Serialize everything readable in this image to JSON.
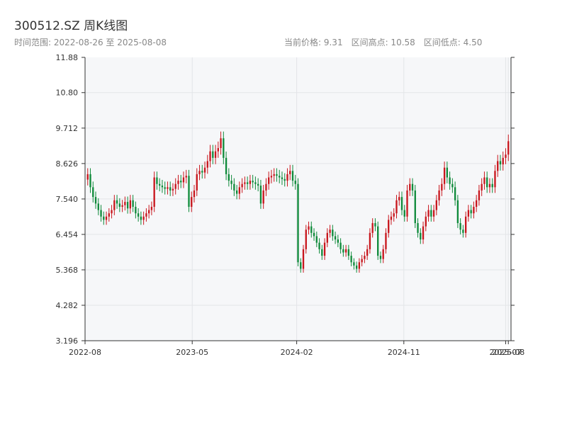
{
  "header": {
    "title": "300512.SZ 周K线图",
    "range_label": "时间范围: 2022-08-26 至 2025-08-08",
    "price_label": "当前价格: 9.31",
    "high_label": "区间高点: 10.58",
    "low_label": "区间低点: 4.50"
  },
  "colors": {
    "up": "#c8161d",
    "down": "#0f8a3a",
    "plot_bg": "#f6f7f9",
    "grid": "#e3e5e8",
    "axis": "#333333"
  },
  "chart_data": {
    "type": "candlestick",
    "title": "300512.SZ 周K线图",
    "ylim": [
      3.196,
      11.88
    ],
    "yticks": [
      "3.196",
      "4.282",
      "5.368",
      "6.454",
      "7.540",
      "8.626",
      "9.712",
      "10.80",
      "11.88"
    ],
    "xlim_weeks": [
      0,
      159
    ],
    "xticks": [
      {
        "label": "2022-08",
        "week": 0
      },
      {
        "label": "2023-05",
        "week": 40
      },
      {
        "label": "2024-02",
        "week": 79
      },
      {
        "label": "2024-11",
        "week": 119
      },
      {
        "label": "2025-07",
        "week": 157
      },
      {
        "label": "2025-08",
        "week": 158
      }
    ],
    "current_price": 9.31,
    "period_high": 10.58,
    "period_low": 4.5,
    "closes": [
      8.3,
      7.9,
      7.6,
      7.4,
      7.2,
      7.0,
      6.9,
      7.0,
      7.1,
      7.2,
      7.5,
      7.4,
      7.3,
      7.35,
      7.45,
      7.25,
      7.5,
      7.3,
      7.1,
      7.0,
      6.9,
      7.0,
      7.1,
      7.2,
      7.3,
      8.2,
      8.0,
      7.95,
      7.9,
      7.85,
      7.9,
      7.8,
      7.85,
      8.0,
      8.1,
      8.05,
      8.2,
      8.25,
      7.3,
      7.6,
      7.8,
      8.3,
      8.4,
      8.35,
      8.5,
      8.7,
      9.0,
      8.8,
      9.0,
      9.1,
      9.4,
      8.8,
      8.3,
      8.1,
      8.0,
      7.8,
      7.7,
      7.9,
      8.0,
      8.05,
      8.0,
      8.1,
      8.05,
      8.0,
      7.95,
      7.4,
      7.8,
      8.0,
      8.2,
      8.25,
      8.3,
      8.25,
      8.2,
      8.15,
      8.1,
      8.3,
      8.4,
      8.1,
      8.0,
      5.6,
      5.4,
      6.0,
      6.6,
      6.7,
      6.5,
      6.4,
      6.2,
      6.0,
      5.8,
      6.2,
      6.5,
      6.6,
      6.4,
      6.3,
      6.2,
      6.0,
      5.9,
      6.0,
      5.8,
      5.6,
      5.5,
      5.4,
      5.6,
      5.7,
      5.8,
      6.0,
      6.5,
      6.8,
      6.7,
      5.8,
      5.7,
      6.0,
      6.5,
      6.9,
      7.0,
      7.1,
      7.5,
      7.6,
      7.2,
      7.0,
      7.8,
      8.0,
      7.8,
      6.8,
      6.5,
      6.3,
      6.7,
      7.0,
      7.2,
      7.0,
      7.2,
      7.5,
      7.8,
      8.0,
      8.5,
      8.2,
      8.0,
      7.9,
      7.5,
      6.8,
      6.6,
      6.5,
      7.0,
      7.2,
      7.1,
      7.3,
      7.5,
      7.8,
      8.0,
      8.2,
      7.9,
      8.0,
      7.9,
      8.4,
      8.7,
      8.6,
      8.8,
      8.9,
      9.31
    ]
  }
}
